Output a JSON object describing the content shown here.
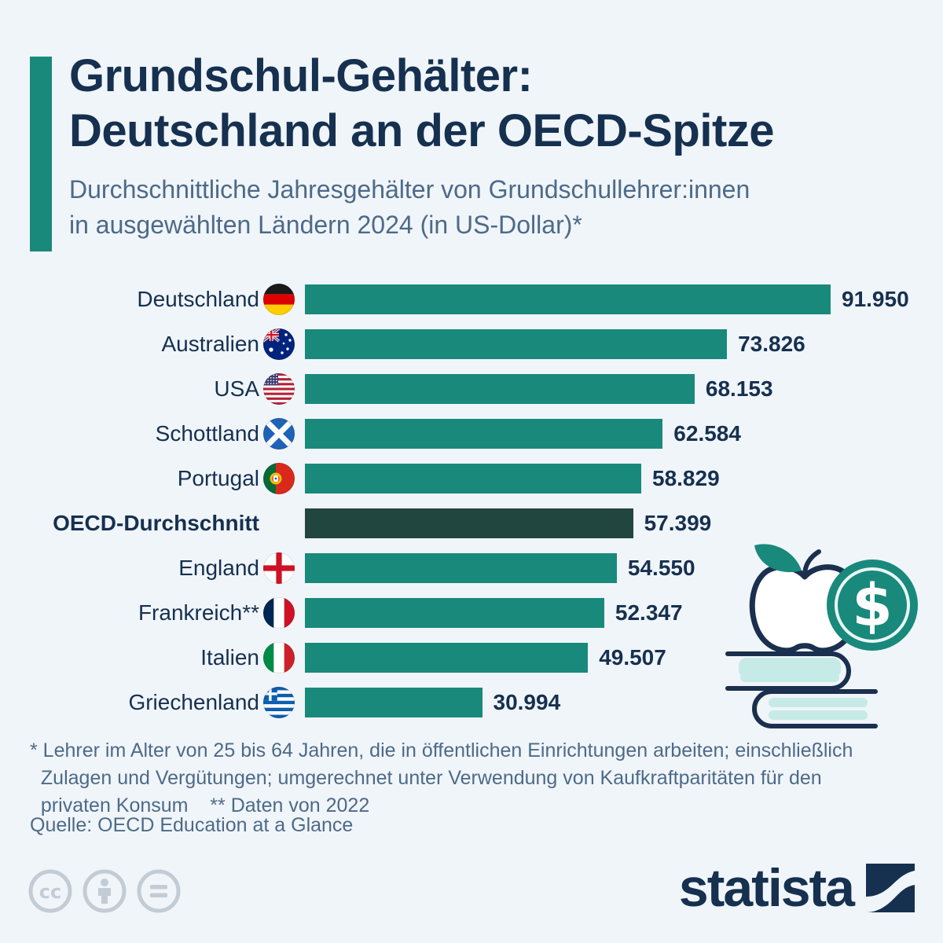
{
  "header": {
    "title_line1": "Grundschul-Gehälter:",
    "title_line2": "Deutschland an der OECD-Spitze",
    "subtitle_line1": "Durchschnittliche Jahresgehälter von Grundschullehrer:innen",
    "subtitle_line2": "in ausgewählten Ländern 2024 (in US-Dollar)*"
  },
  "chart_data": {
    "type": "bar",
    "orientation": "horizontal",
    "title": "Grundschul-Gehälter: Deutschland an der OECD-Spitze",
    "subtitle": "Durchschnittliche Jahresgehälter von Grundschullehrer:innen in ausgewählten Ländern 2024 (in US-Dollar)*",
    "unit": "US-Dollar",
    "year": "2024",
    "xlim": [
      0,
      91950
    ],
    "grid": false,
    "categories": [
      "Deutschland",
      "Australien",
      "USA",
      "Schottland",
      "Portugal",
      "OECD-Durchschnitt",
      "England",
      "Frankreich**",
      "Italien",
      "Griechenland"
    ],
    "values": [
      91950,
      73826,
      68153,
      62584,
      58829,
      57399,
      54550,
      52347,
      49507,
      30994
    ],
    "rows": [
      {
        "label": "Deutschland",
        "flag": "flag-germany",
        "value": 91950,
        "value_label": "91.950",
        "emphasis": false
      },
      {
        "label": "Australien",
        "flag": "flag-australia",
        "value": 73826,
        "value_label": "73.826",
        "emphasis": false
      },
      {
        "label": "USA",
        "flag": "flag-usa",
        "value": 68153,
        "value_label": "68.153",
        "emphasis": false
      },
      {
        "label": "Schottland",
        "flag": "flag-scotland",
        "value": 62584,
        "value_label": "62.584",
        "emphasis": false
      },
      {
        "label": "Portugal",
        "flag": "flag-portugal",
        "value": 58829,
        "value_label": "58.829",
        "emphasis": false
      },
      {
        "label": "OECD-Durchschnitt",
        "flag": null,
        "value": 57399,
        "value_label": "57.399",
        "emphasis": true
      },
      {
        "label": "England",
        "flag": "flag-england",
        "value": 54550,
        "value_label": "54.550",
        "emphasis": false
      },
      {
        "label": "Frankreich**",
        "flag": "flag-france",
        "value": 52347,
        "value_label": "52.347",
        "emphasis": false
      },
      {
        "label": "Italien",
        "flag": "flag-italy",
        "value": 49507,
        "value_label": "49.507",
        "emphasis": false
      },
      {
        "label": "Griechenland",
        "flag": "flag-greece",
        "value": 30994,
        "value_label": "30.994",
        "emphasis": false
      }
    ]
  },
  "colors": {
    "background": "#f0f5fa",
    "bar": "#19897c",
    "bar_emphasis": "#21463f",
    "accent": "#19897c",
    "title_text": "#16304f",
    "subtitle_text": "#4d6a88"
  },
  "footnote": "* Lehrer im Alter von 25 bis 64 Jahren, die in öffentlichen Einrichtungen arbeiten; einschließlich\n  Zulagen und Vergütungen; umgerechnet unter Verwendung von Kaufkraftparitäten für den\n  privaten Konsum    ** Daten von 2022",
  "source": "Quelle: OECD Education at a Glance",
  "branding": {
    "logo_text": "statista"
  },
  "license_icons": [
    "cc-icon",
    "attribution-icon",
    "equal-icon"
  ],
  "illustration": "apple-dollar-coin-books"
}
